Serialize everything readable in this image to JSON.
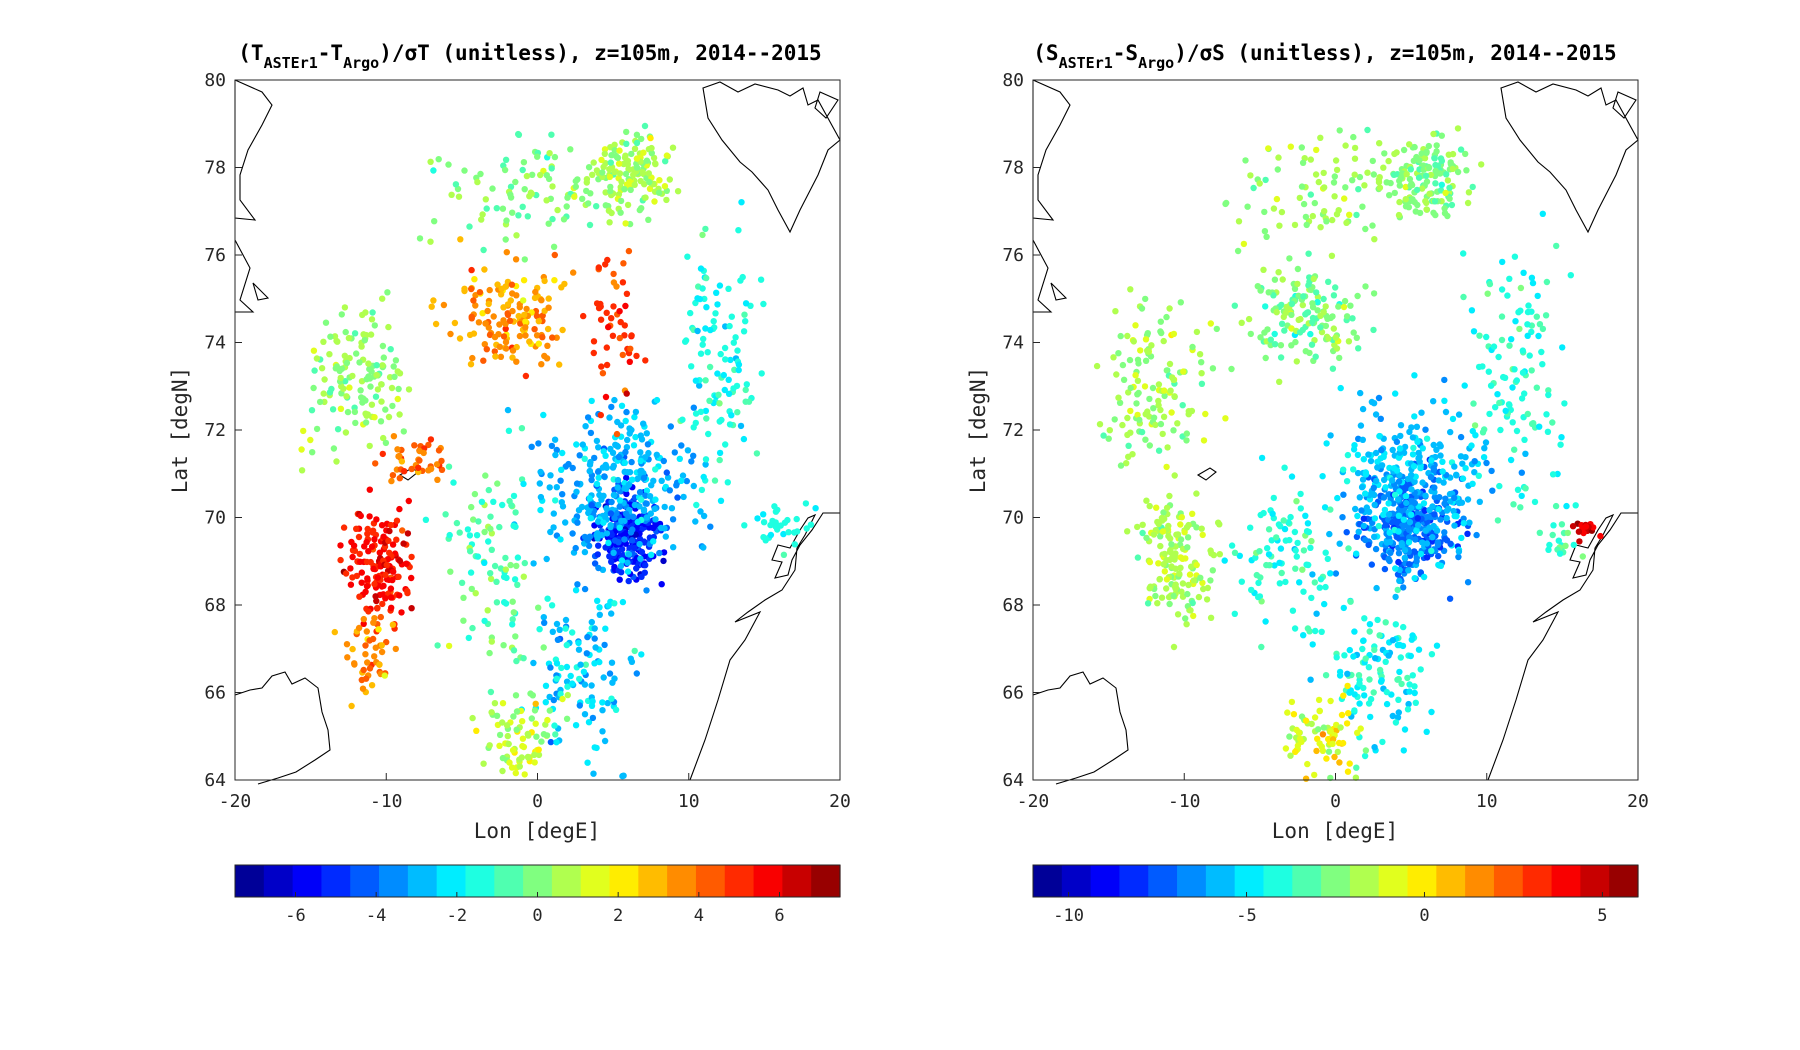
{
  "chart_data": [
    {
      "type": "scatter",
      "title_parts": [
        "(T",
        "ASTEr1",
        "-T",
        "Argo",
        ")/σT (unitless), z=105m, 2014--2015"
      ],
      "xlabel": "Lon [degE]",
      "ylabel": "Lat [degN]",
      "xlim": [
        -20,
        20
      ],
      "ylim": [
        64,
        80
      ],
      "xticks": [
        -20,
        -10,
        0,
        10,
        20
      ],
      "yticks": [
        64,
        66,
        68,
        70,
        72,
        74,
        76,
        78,
        80
      ],
      "colorbar": {
        "clim": [
          -7.5,
          7.5
        ],
        "ticks": [
          -6,
          -4,
          -2,
          0,
          2,
          4,
          6
        ],
        "colormap": "jet",
        "levels": 21
      },
      "clusters": [
        {
          "lon": 6,
          "lat": 69.6,
          "slon": 2.0,
          "slat": 0.8,
          "n": 220,
          "v": -5.2,
          "vs": 1.0
        },
        {
          "lon": 5,
          "lat": 70.6,
          "slon": 4.5,
          "slat": 1.6,
          "n": 320,
          "v": -3.0,
          "vs": 0.9
        },
        {
          "lon": 3,
          "lat": 66.5,
          "slon": 3.0,
          "slat": 1.5,
          "n": 120,
          "v": -2.5,
          "vs": 1.2
        },
        {
          "lon": 12,
          "lat": 73.5,
          "slon": 2.5,
          "slat": 2.5,
          "n": 120,
          "v": -1.5,
          "vs": 1.0
        },
        {
          "lon": 6,
          "lat": 77.8,
          "slon": 2.5,
          "slat": 0.8,
          "n": 150,
          "v": 0.5,
          "vs": 1.0
        },
        {
          "lon": -1,
          "lat": 77.5,
          "slon": 5.0,
          "slat": 1.0,
          "n": 90,
          "v": 0.0,
          "vs": 1.0
        },
        {
          "lon": -2,
          "lat": 74.6,
          "slon": 3.0,
          "slat": 1.0,
          "n": 150,
          "v": 3.2,
          "vs": 1.0
        },
        {
          "lon": 5,
          "lat": 74.5,
          "slon": 1.5,
          "slat": 1.5,
          "n": 50,
          "v": 4.8,
          "vs": 1.0
        },
        {
          "lon": -12,
          "lat": 73.0,
          "slon": 3.0,
          "slat": 1.5,
          "n": 140,
          "v": 0.3,
          "vs": 1.0
        },
        {
          "lon": -10.5,
          "lat": 69.0,
          "slon": 2.0,
          "slat": 1.2,
          "n": 160,
          "v": 5.5,
          "vs": 0.8
        },
        {
          "lon": -11,
          "lat": 66.8,
          "slon": 1.5,
          "slat": 0.8,
          "n": 50,
          "v": 3.8,
          "vs": 1.2
        },
        {
          "lon": -3,
          "lat": 69.0,
          "slon": 3.0,
          "slat": 2.0,
          "n": 100,
          "v": -0.5,
          "vs": 1.2
        },
        {
          "lon": -1,
          "lat": 65.0,
          "slon": 2.5,
          "slat": 0.9,
          "n": 80,
          "v": 1.0,
          "vs": 1.2
        },
        {
          "lon": 16,
          "lat": 69.8,
          "slon": 1.5,
          "slat": 0.5,
          "n": 30,
          "v": -1.5,
          "vs": 0.6
        },
        {
          "lon": -8,
          "lat": 71.3,
          "slon": 2.0,
          "slat": 0.4,
          "n": 40,
          "v": 4.0,
          "vs": 1.0
        }
      ]
    },
    {
      "type": "scatter",
      "title_parts": [
        "(S",
        "ASTEr1",
        "-S",
        "Argo",
        ")/σS (unitless), z=105m, 2014--2015"
      ],
      "xlabel": "Lon [degE]",
      "ylabel": "Lat [degN]",
      "xlim": [
        -20,
        20
      ],
      "ylim": [
        64,
        80
      ],
      "xticks": [
        -20,
        -10,
        0,
        10,
        20
      ],
      "yticks": [
        64,
        66,
        68,
        70,
        72,
        74,
        76,
        78,
        80
      ],
      "colorbar": {
        "clim": [
          -11,
          6
        ],
        "ticks": [
          -10,
          -5,
          0,
          5
        ],
        "colormap": "jet",
        "levels": 21
      },
      "clusters": [
        {
          "lon": 5,
          "lat": 69.8,
          "slon": 3.0,
          "slat": 1.0,
          "n": 300,
          "v": -7.0,
          "vs": 1.0
        },
        {
          "lon": 5,
          "lat": 71.0,
          "slon": 4.5,
          "slat": 1.6,
          "n": 280,
          "v": -5.5,
          "vs": 1.0
        },
        {
          "lon": 3,
          "lat": 66.5,
          "slon": 3.0,
          "slat": 1.5,
          "n": 120,
          "v": -4.5,
          "vs": 1.2
        },
        {
          "lon": 12,
          "lat": 73.5,
          "slon": 2.5,
          "slat": 2.5,
          "n": 120,
          "v": -4.0,
          "vs": 1.0
        },
        {
          "lon": 6,
          "lat": 77.8,
          "slon": 2.5,
          "slat": 0.8,
          "n": 150,
          "v": -2.5,
          "vs": 1.0
        },
        {
          "lon": -1,
          "lat": 77.5,
          "slon": 5.0,
          "slat": 1.0,
          "n": 90,
          "v": -2.0,
          "vs": 1.0
        },
        {
          "lon": -2,
          "lat": 74.6,
          "slon": 3.0,
          "slat": 1.0,
          "n": 150,
          "v": -2.5,
          "vs": 1.2
        },
        {
          "lon": -12,
          "lat": 73.0,
          "slon": 3.0,
          "slat": 1.5,
          "n": 140,
          "v": -2.0,
          "vs": 1.2
        },
        {
          "lon": -10.5,
          "lat": 69.0,
          "slon": 2.0,
          "slat": 1.2,
          "n": 160,
          "v": -1.8,
          "vs": 1.0
        },
        {
          "lon": -3,
          "lat": 69.0,
          "slon": 3.0,
          "slat": 2.0,
          "n": 100,
          "v": -4.0,
          "vs": 1.2
        },
        {
          "lon": -1,
          "lat": 65.0,
          "slon": 2.5,
          "slat": 0.9,
          "n": 80,
          "v": -1.0,
          "vs": 1.5
        },
        {
          "lon": 16.5,
          "lat": 69.7,
          "slon": 0.8,
          "slat": 0.2,
          "n": 15,
          "v": 4.5,
          "vs": 0.8
        },
        {
          "lon": 15,
          "lat": 69.5,
          "slon": 1.5,
          "slat": 0.6,
          "n": 20,
          "v": -3.5,
          "vs": 1.0
        }
      ]
    }
  ]
}
